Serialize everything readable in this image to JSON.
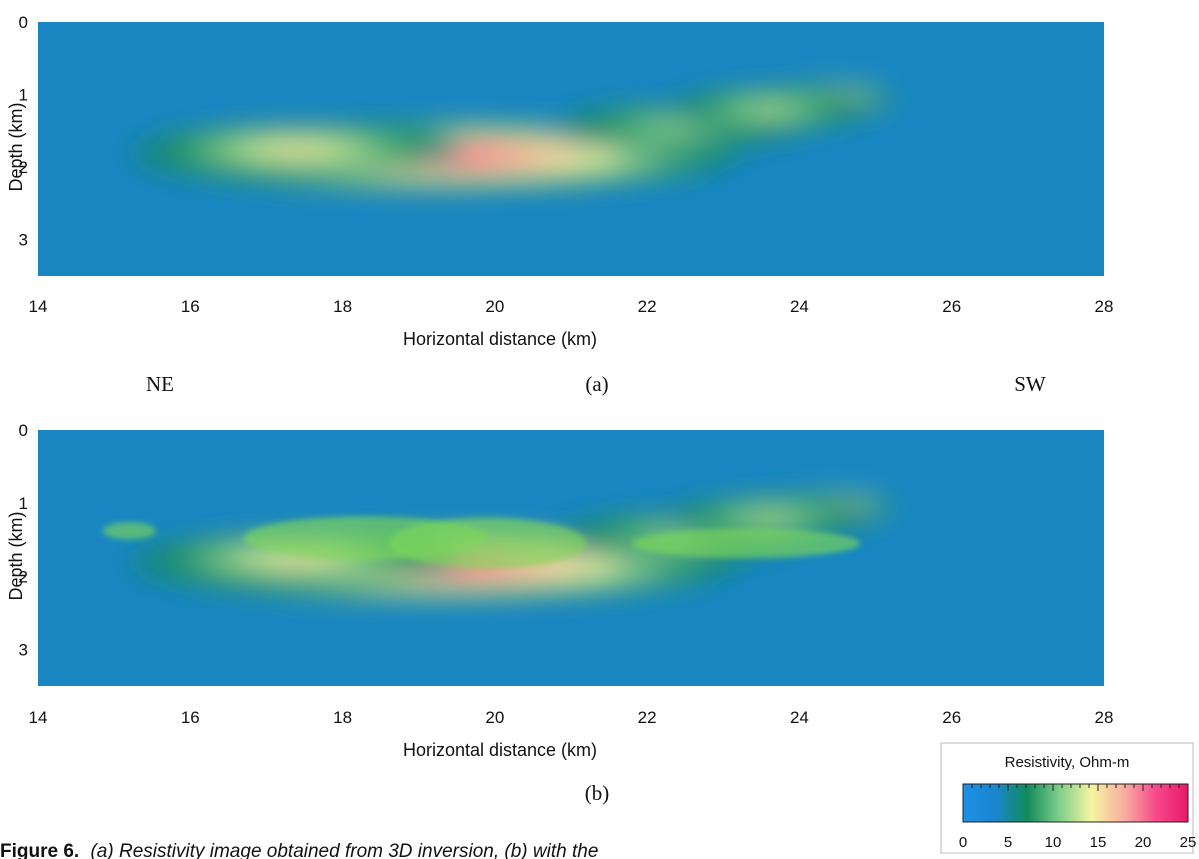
{
  "chart_data": [
    {
      "type": "heatmap",
      "panel_label": "(a)",
      "xlabel": "Horizontal distance (km)",
      "ylabel": "Depth (km)",
      "xlim": [
        14,
        28
      ],
      "ylim": [
        0,
        3.5
      ],
      "y_inverted": true,
      "x_ticks": [
        "14",
        "16",
        "18",
        "20",
        "22",
        "24",
        "26",
        "28"
      ],
      "y_ticks": [
        "0",
        "1",
        "2",
        "3"
      ],
      "direction_labels": {
        "left": "NE",
        "right": "SW"
      },
      "background_value": 4,
      "anomalies": [
        {
          "x_center": 19.2,
          "depth_center": 1.85,
          "x_half_width": 4.0,
          "depth_half_width": 0.48,
          "peak": 24
        },
        {
          "x_center": 17.4,
          "depth_center": 1.75,
          "x_half_width": 2.2,
          "depth_half_width": 0.35,
          "peak": 16
        },
        {
          "x_center": 22.4,
          "depth_center": 1.45,
          "x_half_width": 1.8,
          "depth_half_width": 0.35,
          "peak": 12
        },
        {
          "x_center": 24.2,
          "depth_center": 1.05,
          "x_half_width": 1.1,
          "depth_half_width": 0.2,
          "peak": 24
        },
        {
          "x_center": 23.6,
          "depth_center": 1.2,
          "x_half_width": 1.5,
          "depth_half_width": 0.3,
          "peak": 13
        }
      ]
    },
    {
      "type": "heatmap",
      "panel_label": "(b)",
      "xlabel": "Horizontal distance (km)",
      "ylabel": "Depth (km)",
      "xlim": [
        14,
        28
      ],
      "ylim": [
        0,
        3.5
      ],
      "y_inverted": true,
      "x_ticks": [
        "14",
        "16",
        "18",
        "20",
        "22",
        "24",
        "26",
        "28"
      ],
      "y_ticks": [
        "0",
        "1",
        "2",
        "3"
      ],
      "background_value": 4,
      "anomalies": [
        {
          "x_center": 19.2,
          "depth_center": 1.85,
          "x_half_width": 4.0,
          "depth_half_width": 0.48,
          "peak": 24
        },
        {
          "x_center": 17.4,
          "depth_center": 1.75,
          "x_half_width": 2.2,
          "depth_half_width": 0.35,
          "peak": 16
        },
        {
          "x_center": 22.4,
          "depth_center": 1.45,
          "x_half_width": 1.8,
          "depth_half_width": 0.35,
          "peak": 12
        },
        {
          "x_center": 24.2,
          "depth_center": 1.05,
          "x_half_width": 1.1,
          "depth_half_width": 0.2,
          "peak": 24
        },
        {
          "x_center": 23.6,
          "depth_center": 1.2,
          "x_half_width": 1.5,
          "depth_half_width": 0.3,
          "peak": 13
        }
      ],
      "overlay_color": "#7ed957",
      "overlay_bodies": [
        {
          "x_center": 15.2,
          "depth_center": 1.38,
          "x_half_width": 0.35,
          "depth_half_width": 0.12
        },
        {
          "x_center": 18.3,
          "depth_center": 1.48,
          "x_half_width": 1.6,
          "depth_half_width": 0.3
        },
        {
          "x_center": 19.9,
          "depth_center": 1.55,
          "x_half_width": 1.3,
          "depth_half_width": 0.35
        },
        {
          "x_center": 23.3,
          "depth_center": 1.55,
          "x_half_width": 1.5,
          "depth_half_width": 0.2
        }
      ]
    }
  ],
  "colorbar": {
    "title": "Resistivity, Ohm-m",
    "min": 0,
    "max": 25,
    "ticks": [
      "0",
      "5",
      "10",
      "15",
      "20",
      "25"
    ],
    "colors": [
      "#1f8fe6",
      "#1a86d0",
      "#128a5a",
      "#7fcf8a",
      "#f5f5a0",
      "#f7b0a0",
      "#f74a8a",
      "#e8186a"
    ]
  },
  "caption": {
    "bold": "Figure 6.",
    "italic": "(a) Resistivity image obtained from 3D inversion, (b) with the"
  }
}
